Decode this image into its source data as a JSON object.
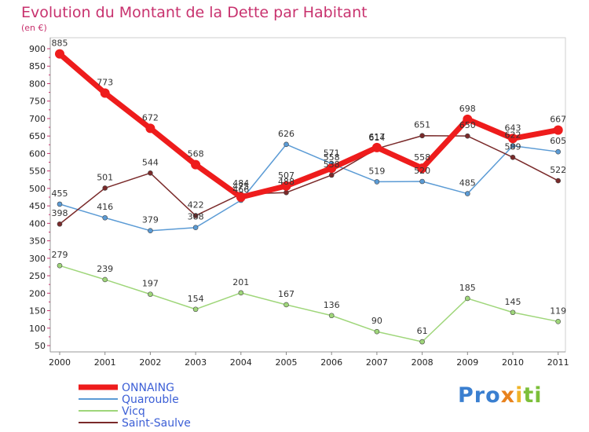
{
  "header": {
    "title": "Evolution du Montant de la Dette par Habitant",
    "unit": "(en €)"
  },
  "logo": {
    "text": "Proxiti"
  },
  "chart_data": {
    "type": "line",
    "title": "Evolution du Montant de la Dette par Habitant",
    "subtitle": "(en €)",
    "x": [
      "2000",
      "2001",
      "2002",
      "2003",
      "2004",
      "2005",
      "2006",
      "2007",
      "2008",
      "2009",
      "2010",
      "2011"
    ],
    "ylim": [
      50,
      900
    ],
    "yticks": [
      50,
      100,
      150,
      200,
      250,
      300,
      350,
      400,
      450,
      500,
      550,
      600,
      650,
      700,
      750,
      800,
      850,
      900
    ],
    "grid": false,
    "legend_position": "bottom-left",
    "series": [
      {
        "name": "Quarouble",
        "color": "#5b9bd5",
        "values": [
          455,
          416,
          379,
          388,
          466,
          626,
          571,
          519,
          520,
          485,
          622,
          605
        ],
        "labels": [
          "455",
          "416",
          "379",
          "388",
          "",
          "626",
          "",
          "519",
          "",
          "485",
          "",
          "605"
        ]
      },
      {
        "name": "Vicq",
        "color": "#9fd67a",
        "values": [
          279,
          239,
          197,
          154,
          201,
          167,
          136,
          90,
          61,
          185,
          145,
          119
        ],
        "labels": [
          "279",
          "239",
          "197",
          "154",
          "201",
          "167",
          "136",
          "90",
          "61",
          "185",
          "145",
          "119"
        ]
      },
      {
        "name": "Saint-Saulve",
        "color": "#7a2a2a",
        "values": [
          398,
          501,
          544,
          422,
          484,
          488,
          538,
          614,
          651,
          650,
          589,
          522
        ],
        "labels": [
          "398",
          "501",
          "544",
          "422",
          "",
          "488",
          "538",
          "614",
          "651",
          "650",
          "589",
          "522"
        ]
      },
      {
        "name": "ONNAING",
        "color": "#ee1c1c",
        "values": [
          885,
          773,
          672,
          568,
          475,
          507,
          558,
          617,
          558,
          698,
          643,
          667
        ],
        "labels": [
          "885",
          "773",
          "672",
          "568",
          "475",
          "507",
          "558",
          "617",
          "558",
          "698",
          "643",
          "667"
        ]
      }
    ],
    "overlap_labels": [
      {
        "x_index": 4,
        "text": "466",
        "value": 466
      },
      {
        "x_index": 4,
        "text": "484",
        "value": 484
      },
      {
        "x_index": 6,
        "text": "571",
        "value": 571
      },
      {
        "x_index": 8,
        "text": "520",
        "value": 520
      },
      {
        "x_index": 10,
        "text": "622",
        "value": 622
      }
    ],
    "legend_order": [
      "ONNAING",
      "Quarouble",
      "Vicq",
      "Saint-Saulve"
    ]
  }
}
